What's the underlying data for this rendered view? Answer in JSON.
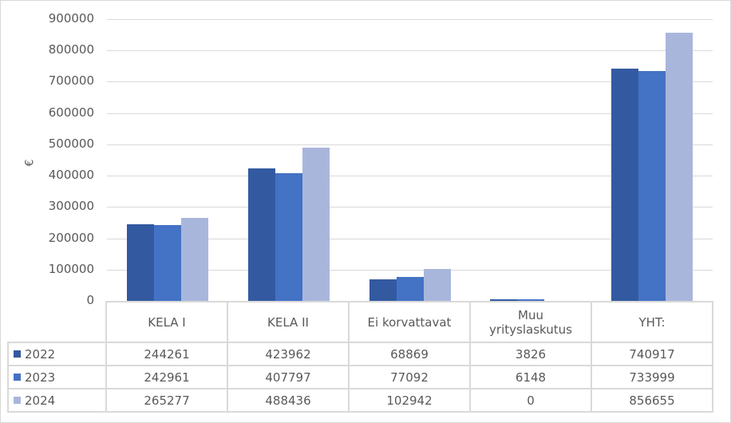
{
  "chart_data": {
    "type": "bar",
    "title": "",
    "xlabel": "",
    "ylabel": "€",
    "ylim": [
      0,
      900000
    ],
    "yticks": [
      "900000",
      "800000",
      "700000",
      "600000",
      "500000",
      "400000",
      "300000",
      "200000",
      "100000",
      "0"
    ],
    "grid": true,
    "legend_position": "data-table",
    "categories": [
      "KELA I",
      "KELA II",
      "Ei korvattavat",
      "Muu yrityslaskutus",
      "YHT:"
    ],
    "series": [
      {
        "name": "2022",
        "color": "#335aa1",
        "values": [
          244261,
          423962,
          68869,
          3826,
          740917
        ]
      },
      {
        "name": "2023",
        "color": "#4472c4",
        "values": [
          242961,
          407797,
          77092,
          6148,
          733999
        ]
      },
      {
        "name": "2024",
        "color": "#a9b6dc",
        "values": [
          265277,
          488436,
          102942,
          0,
          856655
        ]
      }
    ]
  },
  "table": {
    "headers": [
      "KELA I",
      "KELA II",
      "Ei korvattavat",
      "Muu yrityslaskutus",
      "YHT:"
    ],
    "rows": [
      {
        "label": "2022",
        "cells": [
          "244261",
          "423962",
          "68869",
          "3826",
          "740917"
        ]
      },
      {
        "label": "2023",
        "cells": [
          "242961",
          "407797",
          "77092",
          "6148",
          "733999"
        ]
      },
      {
        "label": "2024",
        "cells": [
          "265277",
          "488436",
          "102942",
          "0",
          "856655"
        ]
      }
    ]
  }
}
